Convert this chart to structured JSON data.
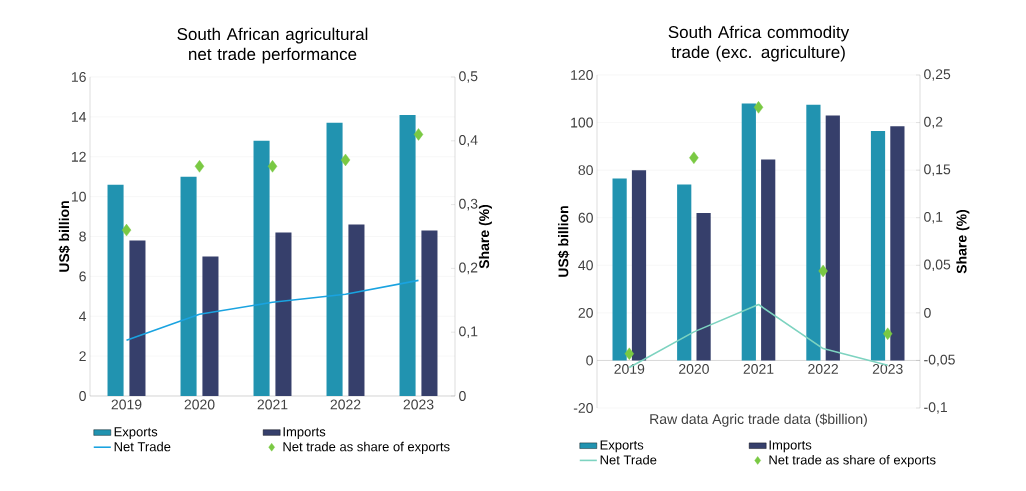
{
  "chart_data": [
    {
      "type": "bar",
      "title": "South African agricultural net trade performance",
      "ylabel": "US$ billion",
      "y2label": "Share (%)",
      "categories": [
        "2019",
        "2020",
        "2021",
        "2022",
        "2023"
      ],
      "series": [
        {
          "name": "Exports",
          "color": "#2193b0",
          "values": [
            10.6,
            11.0,
            12.8,
            13.7,
            14.1
          ]
        },
        {
          "name": "Imports",
          "color": "#363f6b",
          "values": [
            7.8,
            7.0,
            8.2,
            8.6,
            8.3
          ]
        },
        {
          "name": "Net Trade",
          "type": "line",
          "color": "#1aa3e0",
          "values": [
            2.8,
            4.1,
            4.7,
            5.1,
            5.8
          ]
        },
        {
          "name": "Net trade as share of exports",
          "type": "scatter",
          "axis": "y2",
          "marker": "diamond",
          "color": "#7ac943",
          "values": [
            0.26,
            0.36,
            0.36,
            0.37,
            0.41
          ]
        }
      ],
      "ylim": [
        0,
        16
      ],
      "yticks": [
        0,
        2,
        4,
        6,
        8,
        10,
        12,
        14,
        16
      ],
      "y2lim": [
        0,
        0.5
      ],
      "y2ticks": [
        0,
        {
          "value": 0.1,
          "label": "0,1"
        },
        {
          "value": 0.2,
          "label": "0,2"
        },
        {
          "value": 0.3,
          "label": "0,3"
        },
        {
          "value": 0.4,
          "label": "0,4"
        },
        {
          "value": 0.5,
          "label": "0,5"
        }
      ],
      "grid": "y",
      "legend": "bottom"
    },
    {
      "type": "bar",
      "title": "South Africa commodity trade (exc. agriculture)",
      "ylabel": "US$ billion",
      "y2label": "Share (%)",
      "xlabel": "Raw data Agric trade data ($billion)",
      "categories": [
        "2019",
        "2020",
        "2021",
        "2022",
        "2023"
      ],
      "series": [
        {
          "name": "Exports",
          "color": "#2193b0",
          "values": [
            76.5,
            74,
            108,
            107.5,
            96.5
          ]
        },
        {
          "name": "Imports",
          "color": "#363f6b",
          "values": [
            80,
            62,
            84.5,
            103,
            98.5
          ]
        },
        {
          "name": "Net Trade",
          "type": "line",
          "color": "#7dd3c0",
          "values": [
            -3,
            12,
            23.5,
            5,
            -2
          ]
        },
        {
          "name": "Net trade as share of exports",
          "type": "scatter",
          "axis": "y2",
          "marker": "diamond",
          "color": "#7ac943",
          "values": [
            -0.043,
            0.163,
            0.216,
            0.044,
            -0.022
          ]
        }
      ],
      "ylim": [
        -20,
        120
      ],
      "yticks": [
        -20,
        0,
        20,
        40,
        60,
        80,
        100,
        120
      ],
      "y2lim": [
        -0.1,
        0.25
      ],
      "y2ticks": [
        {
          "value": -0.1,
          "label": "-0,1"
        },
        {
          "value": -0.05,
          "label": "-0,05"
        },
        0,
        {
          "value": 0.05,
          "label": "0,05"
        },
        {
          "value": 0.1,
          "label": "0,1"
        },
        {
          "value": 0.15,
          "label": "0,15"
        },
        {
          "value": 0.2,
          "label": "0,2"
        },
        {
          "value": 0.25,
          "label": "0,25"
        }
      ],
      "grid": "y",
      "legend": "bottom"
    }
  ]
}
